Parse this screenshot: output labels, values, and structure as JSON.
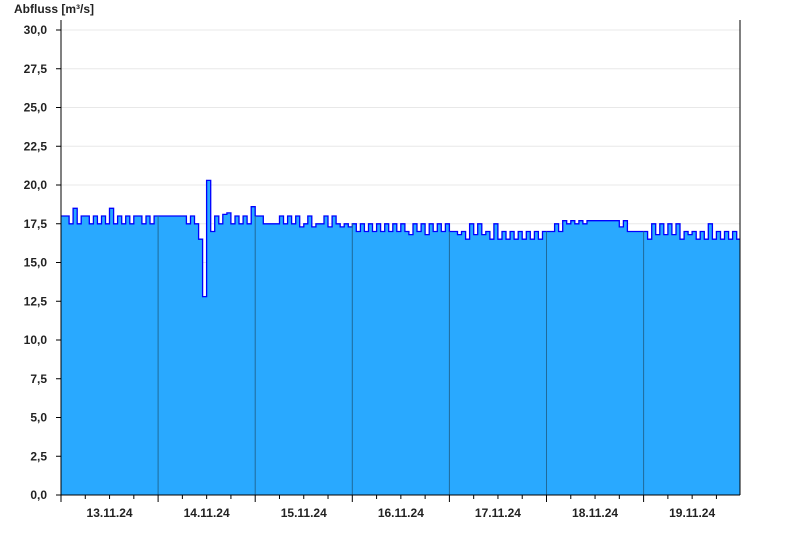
{
  "chart_data": {
    "type": "area",
    "ylabel": "Abfluss [m³/s]",
    "ylim": [
      0,
      30
    ],
    "yticks": [
      "0,0",
      "2,5",
      "5,0",
      "7,5",
      "10,0",
      "12,5",
      "15,0",
      "17,5",
      "20,0",
      "22,5",
      "25,0",
      "27,5",
      "30,0"
    ],
    "ytick_values": [
      0,
      2.5,
      5,
      7.5,
      10,
      12.5,
      15,
      17.5,
      20,
      22.5,
      25,
      27.5,
      30
    ],
    "grid": true,
    "colors": {
      "fill": "#29a9ff",
      "line": "#0000ff",
      "day_separator": "#1f6a9a",
      "grid": "#e8e8e8"
    },
    "x_tick_labels": [
      "13.11.24",
      "14.11.24",
      "15.11.24",
      "16.11.24",
      "17.11.24",
      "18.11.24",
      "19.11.24"
    ],
    "days": [
      {
        "date": "13.11.24",
        "hourly": [
          18.0,
          18.0,
          17.5,
          18.5,
          17.5,
          18.0,
          18.0,
          17.5,
          18.0,
          17.5,
          18.0,
          17.5,
          18.5,
          17.5,
          18.0,
          17.5,
          18.0,
          17.5,
          18.0,
          18.0,
          17.5,
          18.0,
          17.5,
          18.0
        ]
      },
      {
        "date": "14.11.24",
        "hourly": [
          18.0,
          18.0,
          18.0,
          18.0,
          18.0,
          18.0,
          18.0,
          17.5,
          18.0,
          17.5,
          16.5,
          12.8,
          20.3,
          17.0,
          18.0,
          17.5,
          18.1,
          18.2,
          17.5,
          18.0,
          17.5,
          18.0,
          17.5,
          18.6
        ]
      },
      {
        "date": "15.11.24",
        "hourly": [
          18.0,
          18.0,
          17.5,
          17.5,
          17.5,
          17.5,
          18.0,
          17.5,
          18.0,
          17.5,
          18.0,
          17.3,
          17.5,
          18.0,
          17.3,
          17.5,
          17.5,
          18.0,
          17.3,
          18.0,
          17.5,
          17.3,
          17.5,
          17.3
        ]
      },
      {
        "date": "16.11.24",
        "hourly": [
          17.5,
          17.0,
          17.5,
          17.0,
          17.5,
          17.0,
          17.5,
          17.0,
          17.5,
          17.0,
          17.5,
          17.0,
          17.5,
          17.0,
          16.8,
          17.5,
          17.0,
          17.5,
          16.8,
          17.5,
          17.0,
          17.5,
          17.0,
          17.5
        ]
      },
      {
        "date": "17.11.24",
        "hourly": [
          17.0,
          17.0,
          16.8,
          17.0,
          16.5,
          17.5,
          16.8,
          17.5,
          16.8,
          17.0,
          16.5,
          17.5,
          16.5,
          17.0,
          16.5,
          17.0,
          16.5,
          17.0,
          16.5,
          17.0,
          16.5,
          17.0,
          16.5,
          17.0
        ]
      },
      {
        "date": "18.11.24",
        "hourly": [
          17.0,
          17.0,
          17.5,
          17.0,
          17.7,
          17.5,
          17.7,
          17.5,
          17.7,
          17.5,
          17.7,
          17.7,
          17.7,
          17.7,
          17.7,
          17.7,
          17.7,
          17.7,
          17.3,
          17.7,
          17.0,
          17.0,
          17.0,
          17.0
        ]
      },
      {
        "date": "19.11.24",
        "hourly": [
          17.0,
          16.5,
          17.5,
          16.8,
          17.5,
          16.8,
          17.5,
          16.8,
          17.5,
          16.5,
          17.0,
          16.8,
          17.0,
          16.5,
          17.0,
          16.5,
          17.5,
          16.5,
          17.0,
          16.5,
          17.0,
          16.5,
          17.0,
          16.5
        ]
      }
    ]
  }
}
